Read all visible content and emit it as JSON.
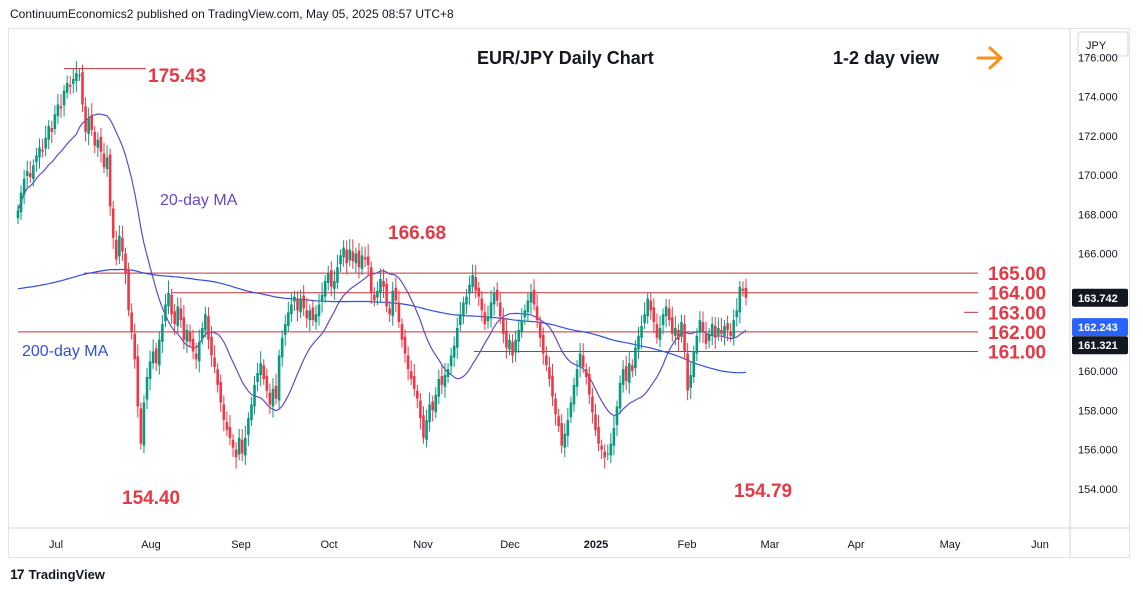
{
  "header": {
    "publisher_line": "ContinuumEconomics2 published on TradingView.com, May 05, 2025 08:57 UTC+8"
  },
  "footer": {
    "brand": "TradingView",
    "logo_icon": "tradingview-logo-icon"
  },
  "chart_data": {
    "type": "candlestick",
    "title": "EUR/JPY Daily Chart",
    "view_label": "1-2 day view",
    "view_arrow_icon": "arrow-right-icon",
    "currency": "JPY",
    "ylim": [
      152.0,
      177.5
    ],
    "y_ticks": [
      "154.000",
      "156.000",
      "158.000",
      "160.000",
      "162.000",
      "164.000",
      "166.000",
      "168.000",
      "170.000",
      "172.000",
      "174.000",
      "176.000"
    ],
    "x_ticks": [
      "Jul",
      "Aug",
      "Sep",
      "Oct",
      "Nov",
      "Dec",
      "2025",
      "Feb",
      "Mar",
      "Apr",
      "May",
      "Jun"
    ],
    "price_badges": [
      {
        "label": "163.742",
        "value": 163.742,
        "color": "#131722"
      },
      {
        "label": "162.243",
        "value": 162.243,
        "color": "#2962ff"
      },
      {
        "label": "161.321",
        "value": 161.321,
        "color": "#131722"
      }
    ],
    "levels": [
      {
        "label": "165.00",
        "value": 165.0
      },
      {
        "label": "164.00",
        "value": 164.0
      },
      {
        "label": "163.00",
        "value": 163.0
      },
      {
        "label": "162.00",
        "value": 162.0
      },
      {
        "label": "161.00",
        "value": 161.0
      }
    ],
    "annotations": [
      {
        "label": "175.43",
        "value": 175.43
      },
      {
        "label": "166.68",
        "value": 166.68
      },
      {
        "label": "154.40",
        "value": 154.4
      },
      {
        "label": "154.79",
        "value": 154.79
      }
    ],
    "ma_labels": {
      "ma20": "20-day MA",
      "ma200": "200-day MA"
    },
    "colors": {
      "up": "#089981",
      "down": "#f23645",
      "annotation": "#e53945",
      "ma20": "#6448c8",
      "ma200": "#3150d6",
      "level": "#c0303a"
    },
    "closes": [
      168.2,
      169.1,
      169.8,
      170.2,
      169.9,
      170.5,
      171.0,
      171.4,
      171.2,
      171.9,
      172.5,
      172.2,
      173.1,
      173.6,
      173.4,
      174.3,
      174.7,
      174.5,
      174.9,
      175.2,
      175.1,
      173.6,
      172.2,
      172.9,
      172.3,
      171.5,
      171.8,
      171.2,
      170.4,
      170.9,
      168.4,
      166.8,
      165.7,
      166.9,
      166.1,
      165.0,
      163.1,
      162.0,
      160.6,
      158.2,
      156.3,
      158.4,
      159.7,
      160.5,
      161.0,
      160.4,
      161.6,
      162.4,
      163.4,
      164.0,
      162.9,
      162.4,
      163.3,
      162.6,
      161.6,
      162.1,
      161.5,
      161.0,
      160.6,
      161.5,
      162.2,
      162.9,
      161.6,
      160.8,
      160.2,
      159.3,
      158.4,
      157.5,
      157.0,
      156.6,
      156.1,
      155.6,
      156.6,
      155.8,
      156.6,
      157.6,
      158.3,
      159.3,
      159.9,
      160.4,
      159.6,
      159.0,
      158.3,
      159.1,
      158.6,
      160.8,
      161.7,
      162.4,
      163.0,
      163.4,
      163.8,
      163.1,
      163.7,
      163.2,
      162.7,
      163.1,
      162.6,
      162.9,
      163.4,
      163.9,
      164.6,
      165.0,
      164.3,
      164.6,
      165.3,
      165.9,
      166.3,
      165.5,
      166.2,
      165.6,
      166.0,
      165.3,
      165.9,
      165.7,
      165.4,
      164.0,
      163.6,
      164.1,
      164.7,
      164.3,
      163.3,
      162.9,
      164.1,
      163.6,
      162.5,
      161.6,
      160.9,
      160.1,
      159.6,
      159.1,
      158.6,
      157.6,
      156.6,
      157.5,
      158.3,
      158.0,
      158.8,
      159.6,
      159.3,
      159.8,
      160.1,
      160.8,
      161.3,
      162.2,
      162.9,
      163.5,
      163.8,
      164.4,
      164.9,
      164.1,
      163.8,
      163.1,
      162.4,
      162.8,
      163.5,
      164.0,
      163.6,
      162.8,
      161.9,
      161.2,
      161.6,
      160.8,
      161.6,
      162.1,
      162.6,
      163.1,
      163.6,
      164.0,
      163.4,
      162.6,
      161.7,
      160.9,
      160.3,
      159.6,
      158.7,
      157.8,
      157.2,
      156.2,
      156.8,
      157.5,
      158.4,
      159.3,
      160.1,
      160.9,
      160.2,
      159.7,
      158.8,
      157.9,
      157.0,
      156.3,
      156.0,
      155.6,
      155.8,
      156.3,
      157.1,
      158.2,
      159.4,
      160.1,
      159.5,
      160.4,
      160.0,
      161.2,
      161.8,
      162.3,
      162.9,
      163.7,
      163.1,
      162.5,
      161.7,
      162.2,
      162.9,
      163.3,
      162.6,
      161.9,
      162.2,
      161.6,
      162.5,
      161.0,
      159.0,
      159.8,
      161.0,
      161.8,
      162.6,
      162.0,
      161.4,
      161.9,
      162.4,
      161.7,
      162.2,
      161.9,
      162.3,
      162.1,
      161.8,
      162.6,
      163.1,
      164.3,
      164.1,
      163.742
    ]
  }
}
